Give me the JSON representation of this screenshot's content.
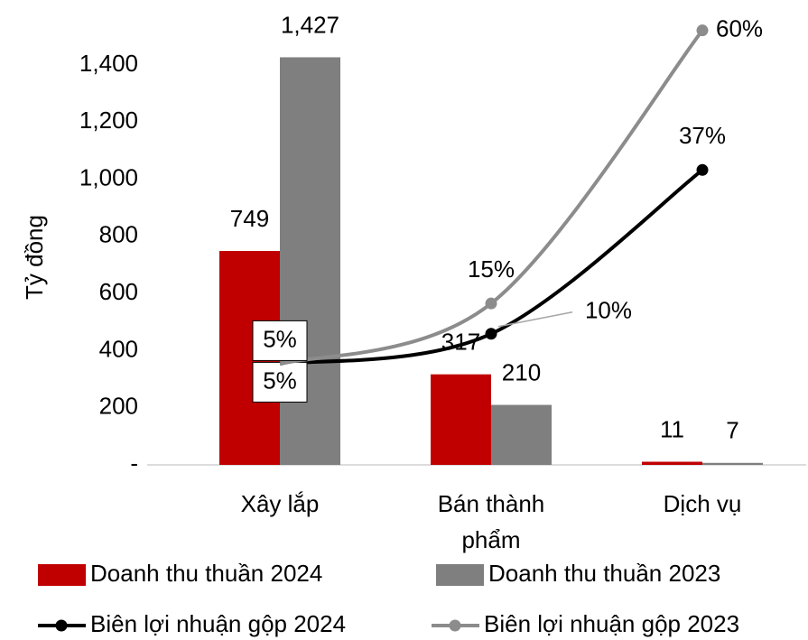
{
  "chart_data": {
    "type": "bar_line",
    "y_axis_label": "Tỷ đồng",
    "categories": [
      "Xây lắp",
      "Bán thành phẩm",
      "Dịch vụ"
    ],
    "ylim": [
      0,
      1400
    ],
    "yticks": [
      {
        "value": 0,
        "label": "-"
      },
      200,
      400,
      600,
      800,
      {
        "value": 1000,
        "label": "1,000"
      },
      {
        "value": 1200,
        "label": "1,200"
      },
      {
        "value": 1400,
        "label": "1,400"
      }
    ],
    "y2lim": [
      -11.6,
      54.3
    ],
    "series": [
      {
        "name": "Doanh thu thuần 2024",
        "type": "bar",
        "color": "#c00000",
        "values": [
          749,
          317,
          11
        ],
        "value_labels": [
          "749",
          "317",
          "11"
        ]
      },
      {
        "name": "Doanh thu thuần 2023",
        "type": "bar",
        "color": "#7f7f7f",
        "values": [
          1427,
          210,
          7
        ],
        "value_labels": [
          "1,427",
          "210",
          "7"
        ]
      },
      {
        "name": "Biên lợi nhuận gộp 2024",
        "type": "line",
        "axis": "y2",
        "color": "#000000",
        "values": [
          5,
          10,
          37
        ],
        "value_labels": [
          "5%",
          "10%",
          "37%"
        ]
      },
      {
        "name": "Biên lợi nhuận gộp 2023",
        "type": "line",
        "axis": "y2",
        "color": "#8c8c8c",
        "values": [
          5,
          15,
          60
        ],
        "value_labels": [
          "5%",
          "15%",
          "60%"
        ]
      }
    ]
  }
}
